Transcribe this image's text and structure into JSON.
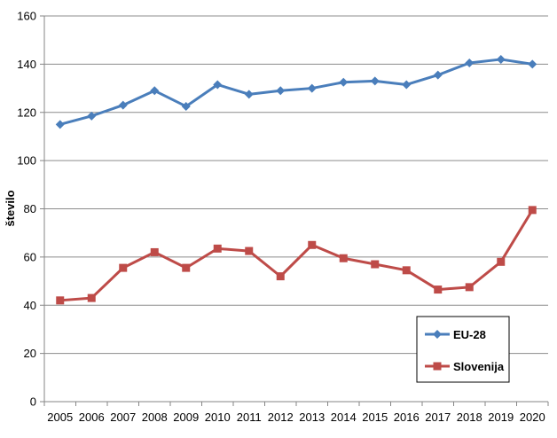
{
  "chart_data": {
    "type": "line",
    "title": "",
    "xlabel": "",
    "ylabel": "število",
    "ylim": [
      0,
      160
    ],
    "yticks": [
      0,
      20,
      40,
      60,
      80,
      100,
      120,
      140,
      160
    ],
    "grid": "horizontal",
    "legend_position": "bottom-right",
    "categories": [
      "2005",
      "2006",
      "2007",
      "2008",
      "2009",
      "2010",
      "2011",
      "2012",
      "2013",
      "2014",
      "2015",
      "2016",
      "2017",
      "2018",
      "2019",
      "2020"
    ],
    "series": [
      {
        "name": "EU-28",
        "color": "#4a7ebb",
        "marker": "diamond",
        "values": [
          115,
          118.5,
          123,
          129,
          122.5,
          131.5,
          127.5,
          129,
          130,
          132.5,
          133,
          131.5,
          135.5,
          140.5,
          142,
          140
        ]
      },
      {
        "name": "Slovenija",
        "color": "#be4b48",
        "marker": "square",
        "values": [
          42,
          43,
          55.5,
          62,
          55.5,
          63.5,
          62.5,
          52,
          65,
          59.5,
          57,
          54.5,
          46.5,
          47.5,
          58,
          79.5
        ]
      }
    ]
  }
}
